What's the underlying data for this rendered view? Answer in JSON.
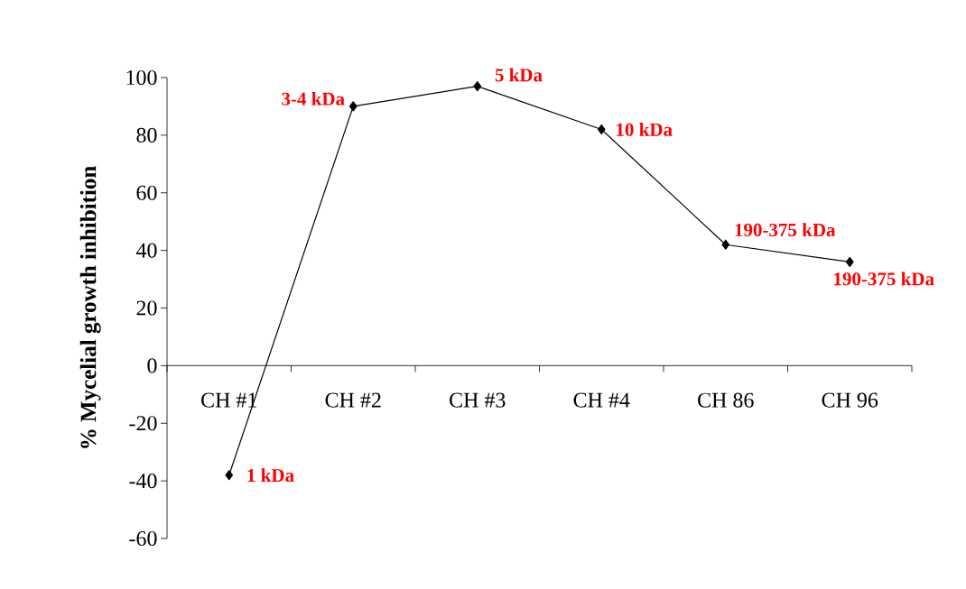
{
  "chart_data": {
    "type": "line",
    "ylabel": "% Mycelial growth inhibition",
    "categories": [
      "CH #1",
      "CH #2",
      "CH #3",
      "CH #4",
      "CH 86",
      "CH 96"
    ],
    "values": [
      -38,
      90,
      97,
      82,
      42,
      36
    ],
    "color": "#000000",
    "marker": "diamond",
    "line_style": "solid",
    "ylim": [
      -60,
      100
    ],
    "yticks": [
      -60,
      -40,
      -20,
      0,
      20,
      40,
      60,
      80,
      100
    ],
    "grid": false,
    "annotations": [
      {
        "text": "1 kDa",
        "x": "CH #1",
        "y": -38
      },
      {
        "text": "3-4 kDa",
        "x": "CH #2",
        "y": 90
      },
      {
        "text": "5 kDa",
        "x": "CH #3",
        "y": 97
      },
      {
        "text": "10 kDa",
        "x": "CH #4",
        "y": 82
      },
      {
        "text": "190-375 kDa",
        "x": "CH 86",
        "y": 42
      },
      {
        "text": "190-375 kDa",
        "x": "CH 96",
        "y": 36
      }
    ]
  }
}
